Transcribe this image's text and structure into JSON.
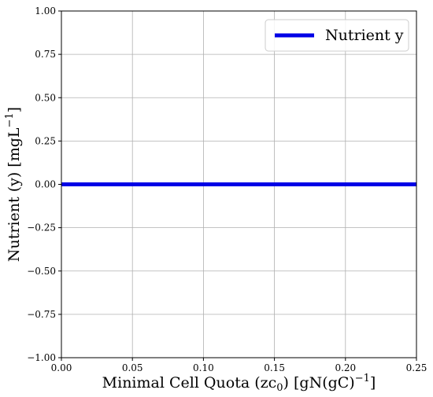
{
  "chart_data": {
    "type": "line",
    "xlabel": "Minimal Cell Quota (zc",
    "xlabel_subscript": "0",
    "xlabel_units": ") [gN(gC)",
    "xlabel_units_sup": "−1",
    "xlabel_end": "]",
    "ylabel": "Nutrient (y) [mgL",
    "ylabel_sup": "−1",
    "ylabel_end": "]",
    "xlim": [
      0.0,
      0.25
    ],
    "ylim": [
      -1.0,
      1.0
    ],
    "x_ticks": [
      "0.00",
      "0.05",
      "0.10",
      "0.15",
      "0.20",
      "0.25"
    ],
    "x_tick_values": [
      0.0,
      0.05,
      0.1,
      0.15,
      0.2,
      0.25
    ],
    "y_ticks": [
      "−1.00",
      "−0.75",
      "−0.50",
      "−0.25",
      "0.00",
      "0.25",
      "0.50",
      "0.75",
      "1.00"
    ],
    "y_tick_values": [
      -1.0,
      -0.75,
      -0.5,
      -0.25,
      0.0,
      0.25,
      0.5,
      0.75,
      1.0
    ],
    "grid": true,
    "legend_position": "top-right",
    "series": [
      {
        "name": "Nutrient y",
        "color": "#0000e6",
        "x": [
          0.0,
          0.25
        ],
        "values": [
          0.0,
          0.0
        ]
      }
    ]
  }
}
